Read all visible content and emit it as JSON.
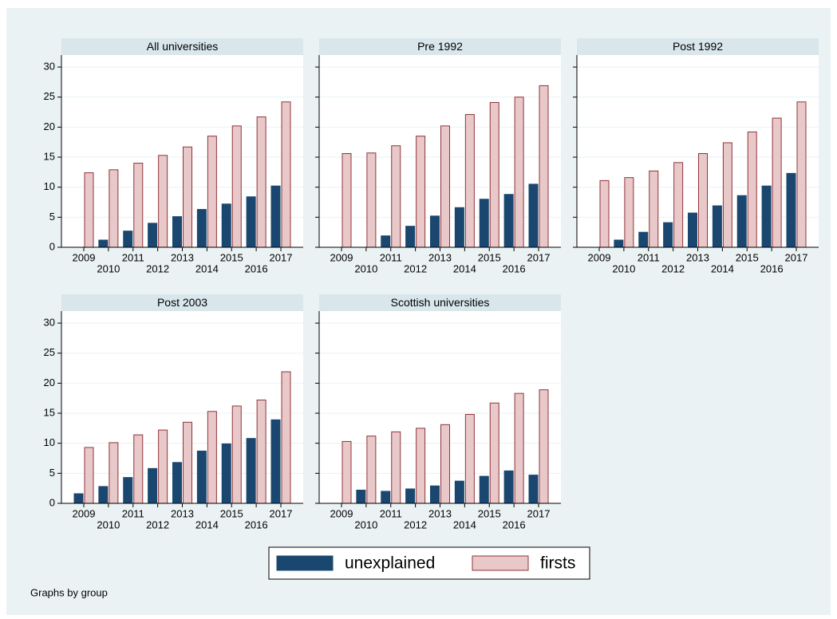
{
  "chart_data": [
    {
      "type": "bar",
      "title": "All universities",
      "categories": [
        "2009",
        "2010",
        "2011",
        "2012",
        "2013",
        "2014",
        "2015",
        "2016",
        "2017"
      ],
      "series": [
        {
          "values": [
            0,
            1.2,
            2.7,
            4.0,
            5.1,
            6.3,
            7.2,
            8.4,
            10.2
          ]
        },
        {
          "values": [
            12.4,
            12.9,
            14.0,
            15.3,
            16.7,
            18.5,
            20.2,
            21.7,
            24.2
          ]
        }
      ],
      "ylim": [
        0,
        32
      ],
      "yticks": [
        0,
        5,
        10,
        15,
        20,
        25,
        30
      ],
      "grid": true,
      "ytick_labels": true
    },
    {
      "type": "bar",
      "title": "Pre 1992",
      "categories": [
        "2009",
        "2010",
        "2011",
        "2012",
        "2013",
        "2014",
        "2015",
        "2016",
        "2017"
      ],
      "series": [
        {
          "values": [
            0,
            0,
            1.9,
            3.5,
            5.2,
            6.6,
            8.0,
            8.8,
            10.5
          ]
        },
        {
          "values": [
            15.6,
            15.7,
            16.9,
            18.5,
            20.2,
            22.1,
            24.1,
            25.0,
            26.9
          ]
        }
      ],
      "ylim": [
        0,
        32
      ],
      "yticks": [
        0,
        5,
        10,
        15,
        20,
        25,
        30
      ],
      "grid": true,
      "ytick_labels": false
    },
    {
      "type": "bar",
      "title": "Post 1992",
      "categories": [
        "2009",
        "2010",
        "2011",
        "2012",
        "2013",
        "2014",
        "2015",
        "2016",
        "2017"
      ],
      "series": [
        {
          "values": [
            0,
            1.2,
            2.5,
            4.1,
            5.7,
            6.9,
            8.6,
            10.2,
            12.3
          ]
        },
        {
          "values": [
            11.1,
            11.6,
            12.7,
            14.1,
            15.6,
            17.4,
            19.2,
            21.5,
            24.2
          ]
        }
      ],
      "ylim": [
        0,
        32
      ],
      "yticks": [
        0,
        5,
        10,
        15,
        20,
        25,
        30
      ],
      "grid": true,
      "ytick_labels": false
    },
    {
      "type": "bar",
      "title": "Post 2003",
      "categories": [
        "2009",
        "2010",
        "2011",
        "2012",
        "2013",
        "2014",
        "2015",
        "2016",
        "2017"
      ],
      "series": [
        {
          "values": [
            1.6,
            2.8,
            4.3,
            5.8,
            6.8,
            8.7,
            9.9,
            10.8,
            13.9
          ]
        },
        {
          "values": [
            9.3,
            10.1,
            11.4,
            12.2,
            13.5,
            15.3,
            16.2,
            17.2,
            21.9
          ]
        }
      ],
      "ylim": [
        0,
        32
      ],
      "yticks": [
        0,
        5,
        10,
        15,
        20,
        25,
        30
      ],
      "grid": true,
      "ytick_labels": true
    },
    {
      "type": "bar",
      "title": "Scottish universities",
      "categories": [
        "2009",
        "2010",
        "2011",
        "2012",
        "2013",
        "2014",
        "2015",
        "2016",
        "2017"
      ],
      "series": [
        {
          "values": [
            0,
            2.2,
            2.0,
            2.4,
            2.9,
            3.7,
            4.5,
            5.4,
            4.7
          ]
        },
        {
          "values": [
            10.3,
            11.2,
            11.9,
            12.5,
            13.1,
            14.8,
            16.7,
            18.3,
            18.9
          ]
        }
      ],
      "ylim": [
        0,
        32
      ],
      "yticks": [
        0,
        5,
        10,
        15,
        20,
        25,
        30
      ],
      "grid": true,
      "ytick_labels": false
    }
  ],
  "legend": {
    "position": "bottom",
    "items": [
      {
        "name": "unexplained",
        "color": "#1a476f",
        "edgecolor": "#1a476f"
      },
      {
        "name": "firsts",
        "color": "#e8c8c8",
        "edgecolor": "#90353b"
      }
    ]
  },
  "note": "Graphs by group"
}
